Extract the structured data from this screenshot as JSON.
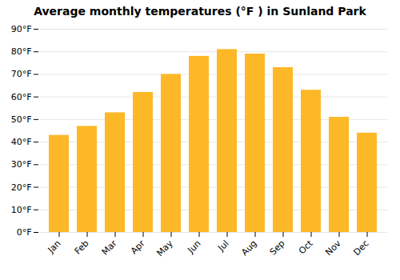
{
  "chart_data": {
    "type": "bar",
    "title": "Average monthly temperatures (°F ) in Sunland Park",
    "categories": [
      "Jan",
      "Feb",
      "Mar",
      "Apr",
      "May",
      "Jun",
      "Jul",
      "Aug",
      "Sep",
      "Oct",
      "Nov",
      "Dec"
    ],
    "values": [
      43,
      47,
      53,
      62,
      70,
      78,
      81,
      79,
      73,
      63,
      51,
      44
    ],
    "color": "#FDB827",
    "ylim": [
      0,
      90
    ],
    "yticks": [
      {
        "value": 0,
        "label": "0°F"
      },
      {
        "value": 10,
        "label": "10°F"
      },
      {
        "value": 20,
        "label": "20°F"
      },
      {
        "value": 30,
        "label": "30°F"
      },
      {
        "value": 40,
        "label": "40°F"
      },
      {
        "value": 50,
        "label": "50°F"
      },
      {
        "value": 60,
        "label": "60°F"
      },
      {
        "value": 70,
        "label": "70°F"
      },
      {
        "value": 80,
        "label": "80°F"
      },
      {
        "value": 90,
        "label": "90°F"
      }
    ],
    "grid": true
  }
}
